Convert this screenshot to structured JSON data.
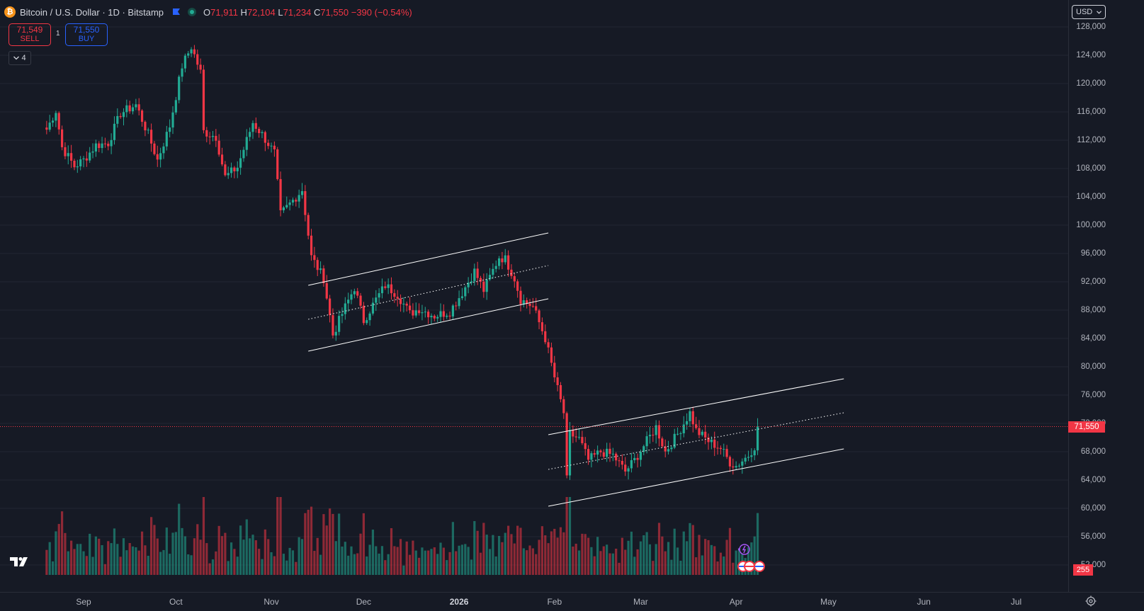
{
  "header": {
    "coin_symbol": "₿",
    "title": "Bitcoin / U.S. Dollar · 1D · Bitstamp",
    "open_label": "O",
    "open": "71,911",
    "high_label": "H",
    "high": "72,104",
    "low_label": "L",
    "low": "71,234",
    "close_label": "C",
    "close": "71,550",
    "change": "−390 (−0.54%)"
  },
  "trade": {
    "sell_price": "71,549",
    "sell_label": "SELL",
    "spread": "1",
    "buy_price": "71,550",
    "buy_label": "BUY"
  },
  "indicators": {
    "count": "4"
  },
  "currency": {
    "selected": "USD"
  },
  "price_axis": {
    "labels": [
      "128,000",
      "124,000",
      "120,000",
      "116,000",
      "112,000",
      "108,000",
      "104,000",
      "100,000",
      "96,000",
      "92,000",
      "88,000",
      "84,000",
      "80,000",
      "76,000",
      "72,000",
      "68,000",
      "64,000",
      "60,000",
      "56,000",
      "52,000"
    ],
    "current_price": "71,550",
    "volume_value": "255"
  },
  "time_axis": {
    "labels": [
      {
        "text": "Sep",
        "bold": false
      },
      {
        "text": "Oct",
        "bold": false
      },
      {
        "text": "Nov",
        "bold": false
      },
      {
        "text": "Dec",
        "bold": false
      },
      {
        "text": "2026",
        "bold": true
      },
      {
        "text": "Feb",
        "bold": false
      },
      {
        "text": "Mar",
        "bold": false
      },
      {
        "text": "Apr",
        "bold": false
      },
      {
        "text": "May",
        "bold": false
      },
      {
        "text": "Jun",
        "bold": false
      },
      {
        "text": "Jul",
        "bold": false
      }
    ]
  },
  "colors": {
    "background": "#161a25",
    "up": "#22ab94",
    "down": "#f23645",
    "channel": "#ffffff",
    "grid": "#232632"
  },
  "chart_data": {
    "type": "candlestick",
    "symbol": "Bitcoin / U.S. Dollar",
    "interval": "1D",
    "exchange": "Bitstamp",
    "ylim": [
      52000,
      128000
    ],
    "close_path": [
      [
        "2025-08-20",
        113500
      ],
      [
        "2025-08-23",
        116200
      ],
      [
        "2025-08-25",
        111000
      ],
      [
        "2025-08-29",
        108300
      ],
      [
        "2025-09-01",
        109200
      ],
      [
        "2025-09-05",
        111300
      ],
      [
        "2025-09-09",
        111600
      ],
      [
        "2025-09-13",
        115800
      ],
      [
        "2025-09-18",
        117000
      ],
      [
        "2025-09-22",
        112800
      ],
      [
        "2025-09-25",
        109200
      ],
      [
        "2025-09-29",
        114000
      ],
      [
        "2025-10-03",
        122500
      ],
      [
        "2025-10-06",
        125200
      ],
      [
        "2025-10-09",
        121600
      ],
      [
        "2025-10-10",
        113200
      ],
      [
        "2025-10-14",
        112500
      ],
      [
        "2025-10-17",
        106800
      ],
      [
        "2025-10-21",
        108200
      ],
      [
        "2025-10-26",
        114500
      ],
      [
        "2025-10-29",
        112800
      ],
      [
        "2025-11-02",
        110200
      ],
      [
        "2025-11-04",
        101500
      ],
      [
        "2025-11-07",
        103000
      ],
      [
        "2025-11-11",
        105000
      ],
      [
        "2025-11-14",
        95500
      ],
      [
        "2025-11-18",
        92500
      ],
      [
        "2025-11-21",
        84500
      ],
      [
        "2025-11-24",
        87500
      ],
      [
        "2025-11-28",
        91200
      ],
      [
        "2025-12-01",
        86500
      ],
      [
        "2025-12-05",
        89500
      ],
      [
        "2025-12-08",
        91500
      ],
      [
        "2025-12-12",
        90200
      ],
      [
        "2025-12-16",
        87500
      ],
      [
        "2025-12-19",
        88200
      ],
      [
        "2025-12-24",
        87200
      ],
      [
        "2025-12-29",
        87800
      ],
      [
        "2026-01-02",
        90500
      ],
      [
        "2026-01-06",
        93500
      ],
      [
        "2026-01-09",
        90800
      ],
      [
        "2026-01-14",
        95500
      ],
      [
        "2026-01-16",
        95200
      ],
      [
        "2026-01-19",
        92500
      ],
      [
        "2026-01-21",
        89500
      ],
      [
        "2026-01-25",
        88500
      ],
      [
        "2026-01-29",
        84000
      ],
      [
        "2026-02-01",
        78500
      ],
      [
        "2026-02-04",
        73500
      ],
      [
        "2026-02-05",
        64000
      ],
      [
        "2026-02-06",
        70500
      ],
      [
        "2026-02-09",
        69800
      ],
      [
        "2026-02-12",
        66800
      ],
      [
        "2026-02-16",
        68000
      ],
      [
        "2026-02-20",
        67500
      ],
      [
        "2026-02-24",
        65200
      ],
      [
        "2026-02-27",
        66800
      ],
      [
        "2026-03-03",
        69500
      ],
      [
        "2026-03-06",
        71500
      ],
      [
        "2026-03-09",
        68000
      ],
      [
        "2026-03-13",
        70500
      ],
      [
        "2026-03-17",
        73500
      ],
      [
        "2026-03-19",
        71000
      ],
      [
        "2026-03-23",
        69500
      ],
      [
        "2026-03-27",
        68500
      ],
      [
        "2026-03-30",
        66500
      ],
      [
        "2026-04-01",
        66000
      ],
      [
        "2026-04-05",
        67500
      ],
      [
        "2026-04-07",
        68800
      ],
      [
        "2026-04-08",
        71550
      ]
    ],
    "channels": [
      {
        "lines": [
          [
            [
              "2025-11-13",
              91500
            ],
            [
              "2026-01-30",
              98900
            ]
          ],
          [
            [
              "2025-11-13",
              86700
            ],
            [
              "2026-01-30",
              94300
            ]
          ],
          [
            [
              "2025-11-13",
              82200
            ],
            [
              "2026-01-30",
              89600
            ]
          ]
        ]
      },
      {
        "lines": [
          [
            [
              "2026-01-30",
              70400
            ],
            [
              "2026-05-06",
              78300
            ]
          ],
          [
            [
              "2026-01-30",
              65500
            ],
            [
              "2026-05-06",
              73500
            ]
          ],
          [
            [
              "2026-01-30",
              60300
            ],
            [
              "2026-05-06",
              68400
            ]
          ]
        ]
      }
    ],
    "current_price": 71550
  }
}
